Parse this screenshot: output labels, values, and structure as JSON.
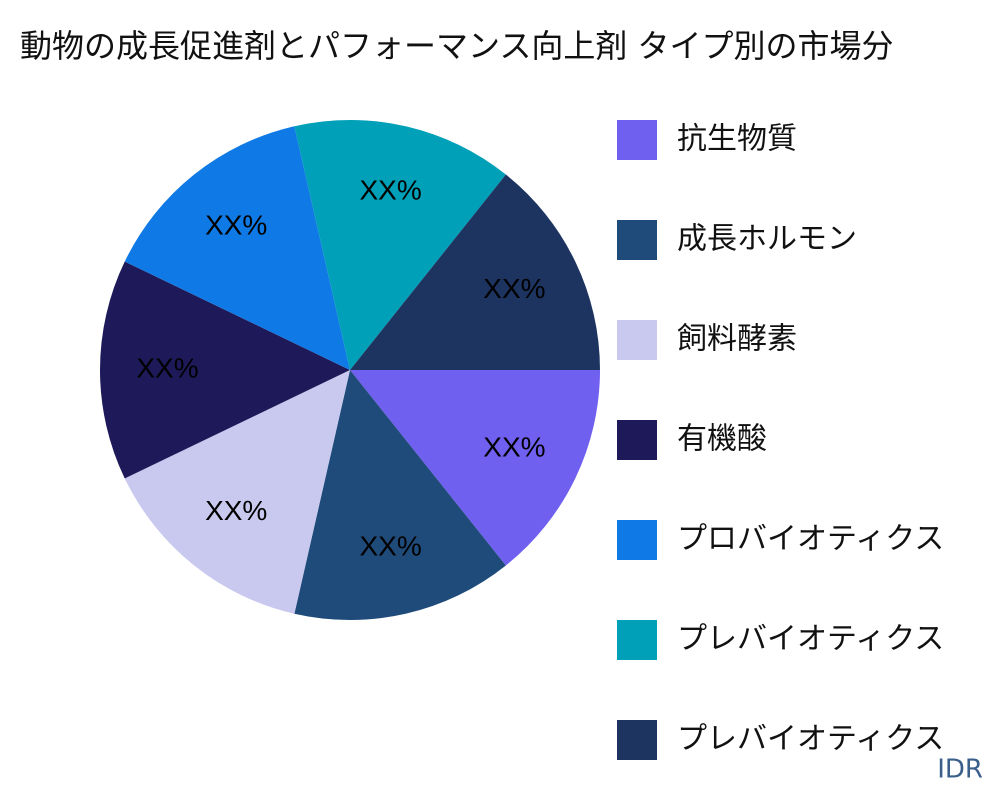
{
  "chart_data": {
    "type": "pie",
    "title": "動物の成長促進剤とパフォーマンス向上剤 タイプ別の市場分",
    "categories": [
      "抗生物質",
      "成長ホルモン",
      "飼料酵素",
      "有機酸",
      "プロバイオティクス",
      "プレバイオティクス",
      "プレバイオティクス"
    ],
    "values": [
      14.3,
      14.3,
      14.3,
      14.3,
      14.3,
      14.3,
      14.3
    ],
    "value_labels": [
      "XX%",
      "XX%",
      "XX%",
      "XX%",
      "XX%",
      "XX%",
      "XX%"
    ],
    "colors": [
      "#7060f0",
      "#1f4b7a",
      "#c9c9f0",
      "#1e1a5a",
      "#0f7ae5",
      "#00a0b8",
      "#1d3461"
    ],
    "legend": "right"
  },
  "watermark": "IDR"
}
